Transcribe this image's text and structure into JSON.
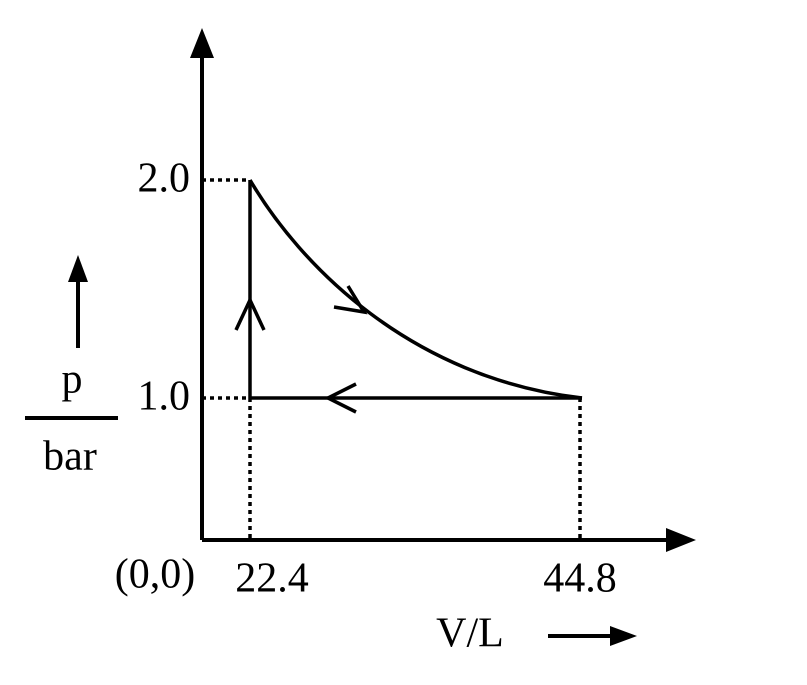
{
  "axes": {
    "y_label_top": "p",
    "y_label_bottom": "bar",
    "x_label": "V/L",
    "origin": "(0,0)"
  },
  "ticks": {
    "y": [
      "2.0",
      "1.0"
    ],
    "x": [
      "22.4",
      "44.8"
    ]
  }
}
